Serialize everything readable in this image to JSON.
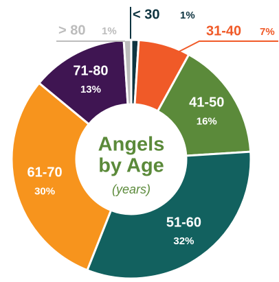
{
  "chart_data": {
    "type": "donut",
    "title": [
      "Angels",
      "by Age"
    ],
    "subtitle": "(years)",
    "categories": [
      "< 30",
      "31-40",
      "41-50",
      "51-60",
      "61-70",
      "71-80",
      "> 80"
    ],
    "values": [
      1,
      7,
      16,
      32,
      30,
      13,
      1
    ],
    "value_labels": [
      "1%",
      "7%",
      "16%",
      "32%",
      "30%",
      "13%",
      "1%"
    ],
    "colors": [
      "#0e3440",
      "#f05a28",
      "#5b8a3a",
      "#12615f",
      "#f7941d",
      "#3f1552",
      "#bcbcbc"
    ]
  }
}
